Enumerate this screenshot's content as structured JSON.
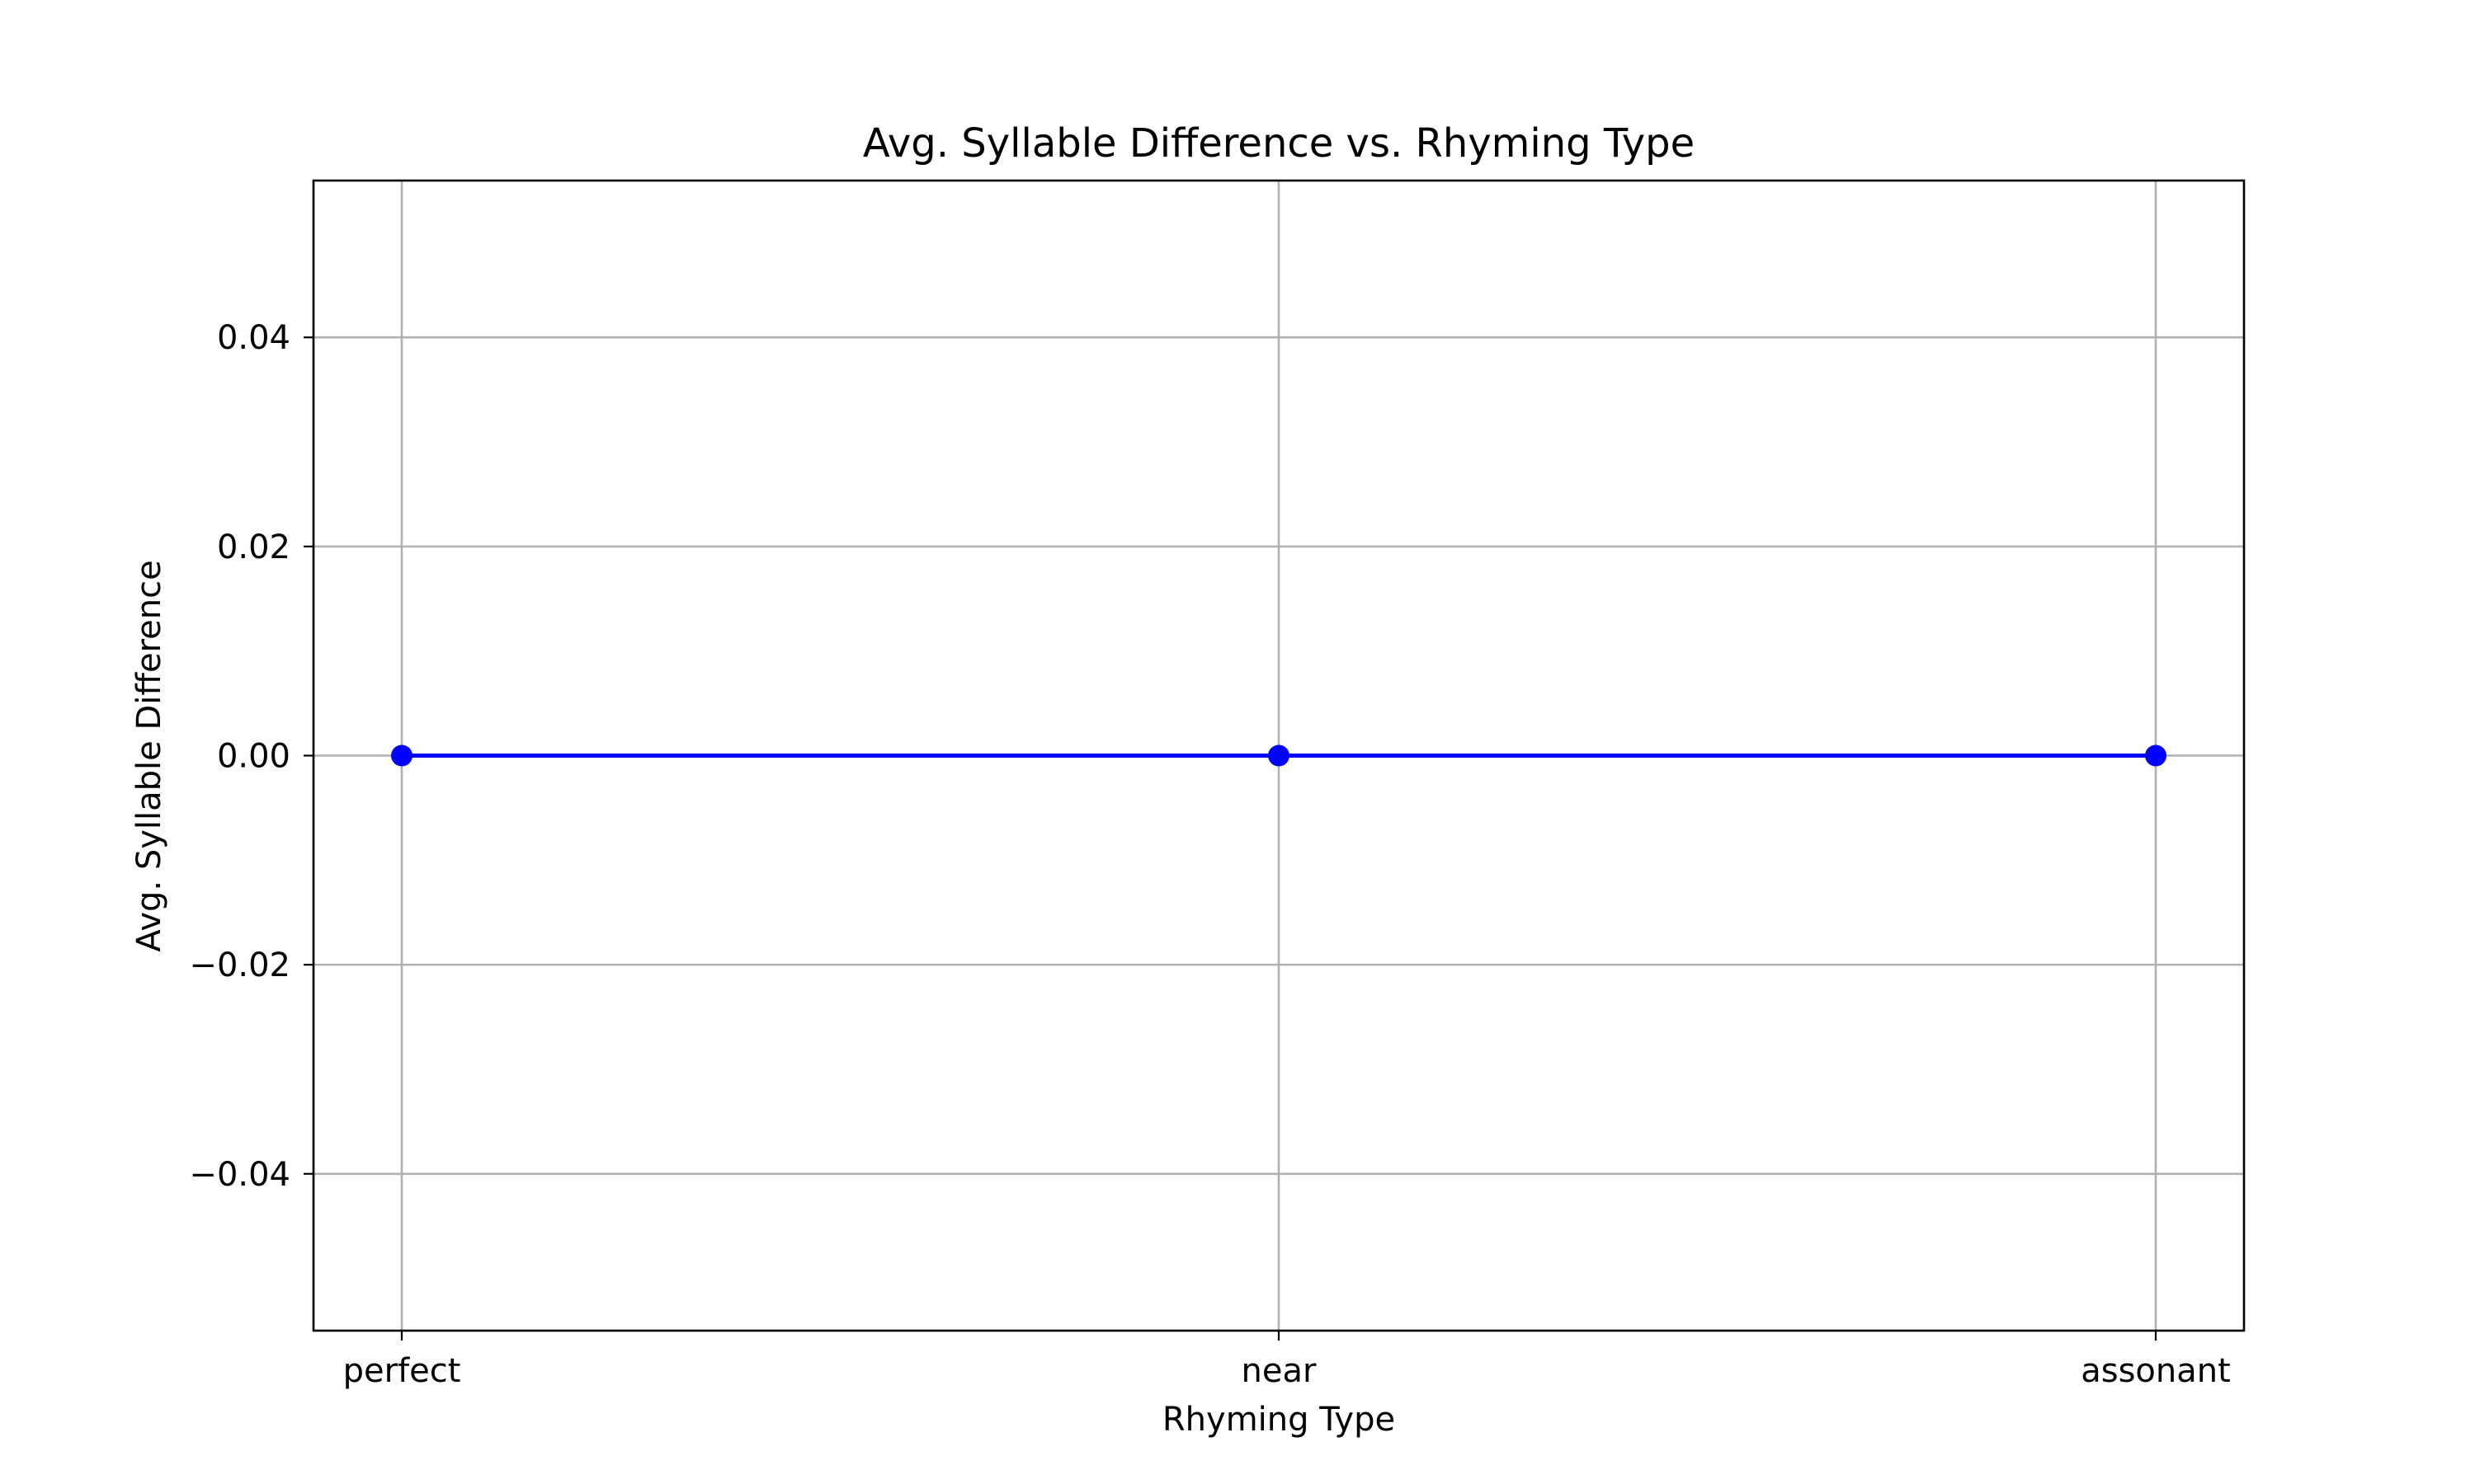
{
  "chart_data": {
    "type": "line",
    "title": "Avg. Syllable Difference vs. Rhyming Type",
    "xlabel": "Rhyming Type",
    "ylabel": "Avg. Syllable Difference",
    "categories": [
      "perfect",
      "near",
      "assonant"
    ],
    "series": [
      {
        "values": [
          0.0,
          0.0,
          0.0
        ],
        "color": "#0000ff",
        "marker": "circle"
      }
    ],
    "ylim": [
      -0.055,
      0.055
    ],
    "yticks": [
      -0.04,
      -0.02,
      0.0,
      0.02,
      0.04
    ],
    "ytick_labels": [
      "−0.04",
      "−0.02",
      "0.00",
      "0.02",
      "0.04"
    ],
    "grid": true,
    "grid_color": "#b0b0b0"
  }
}
